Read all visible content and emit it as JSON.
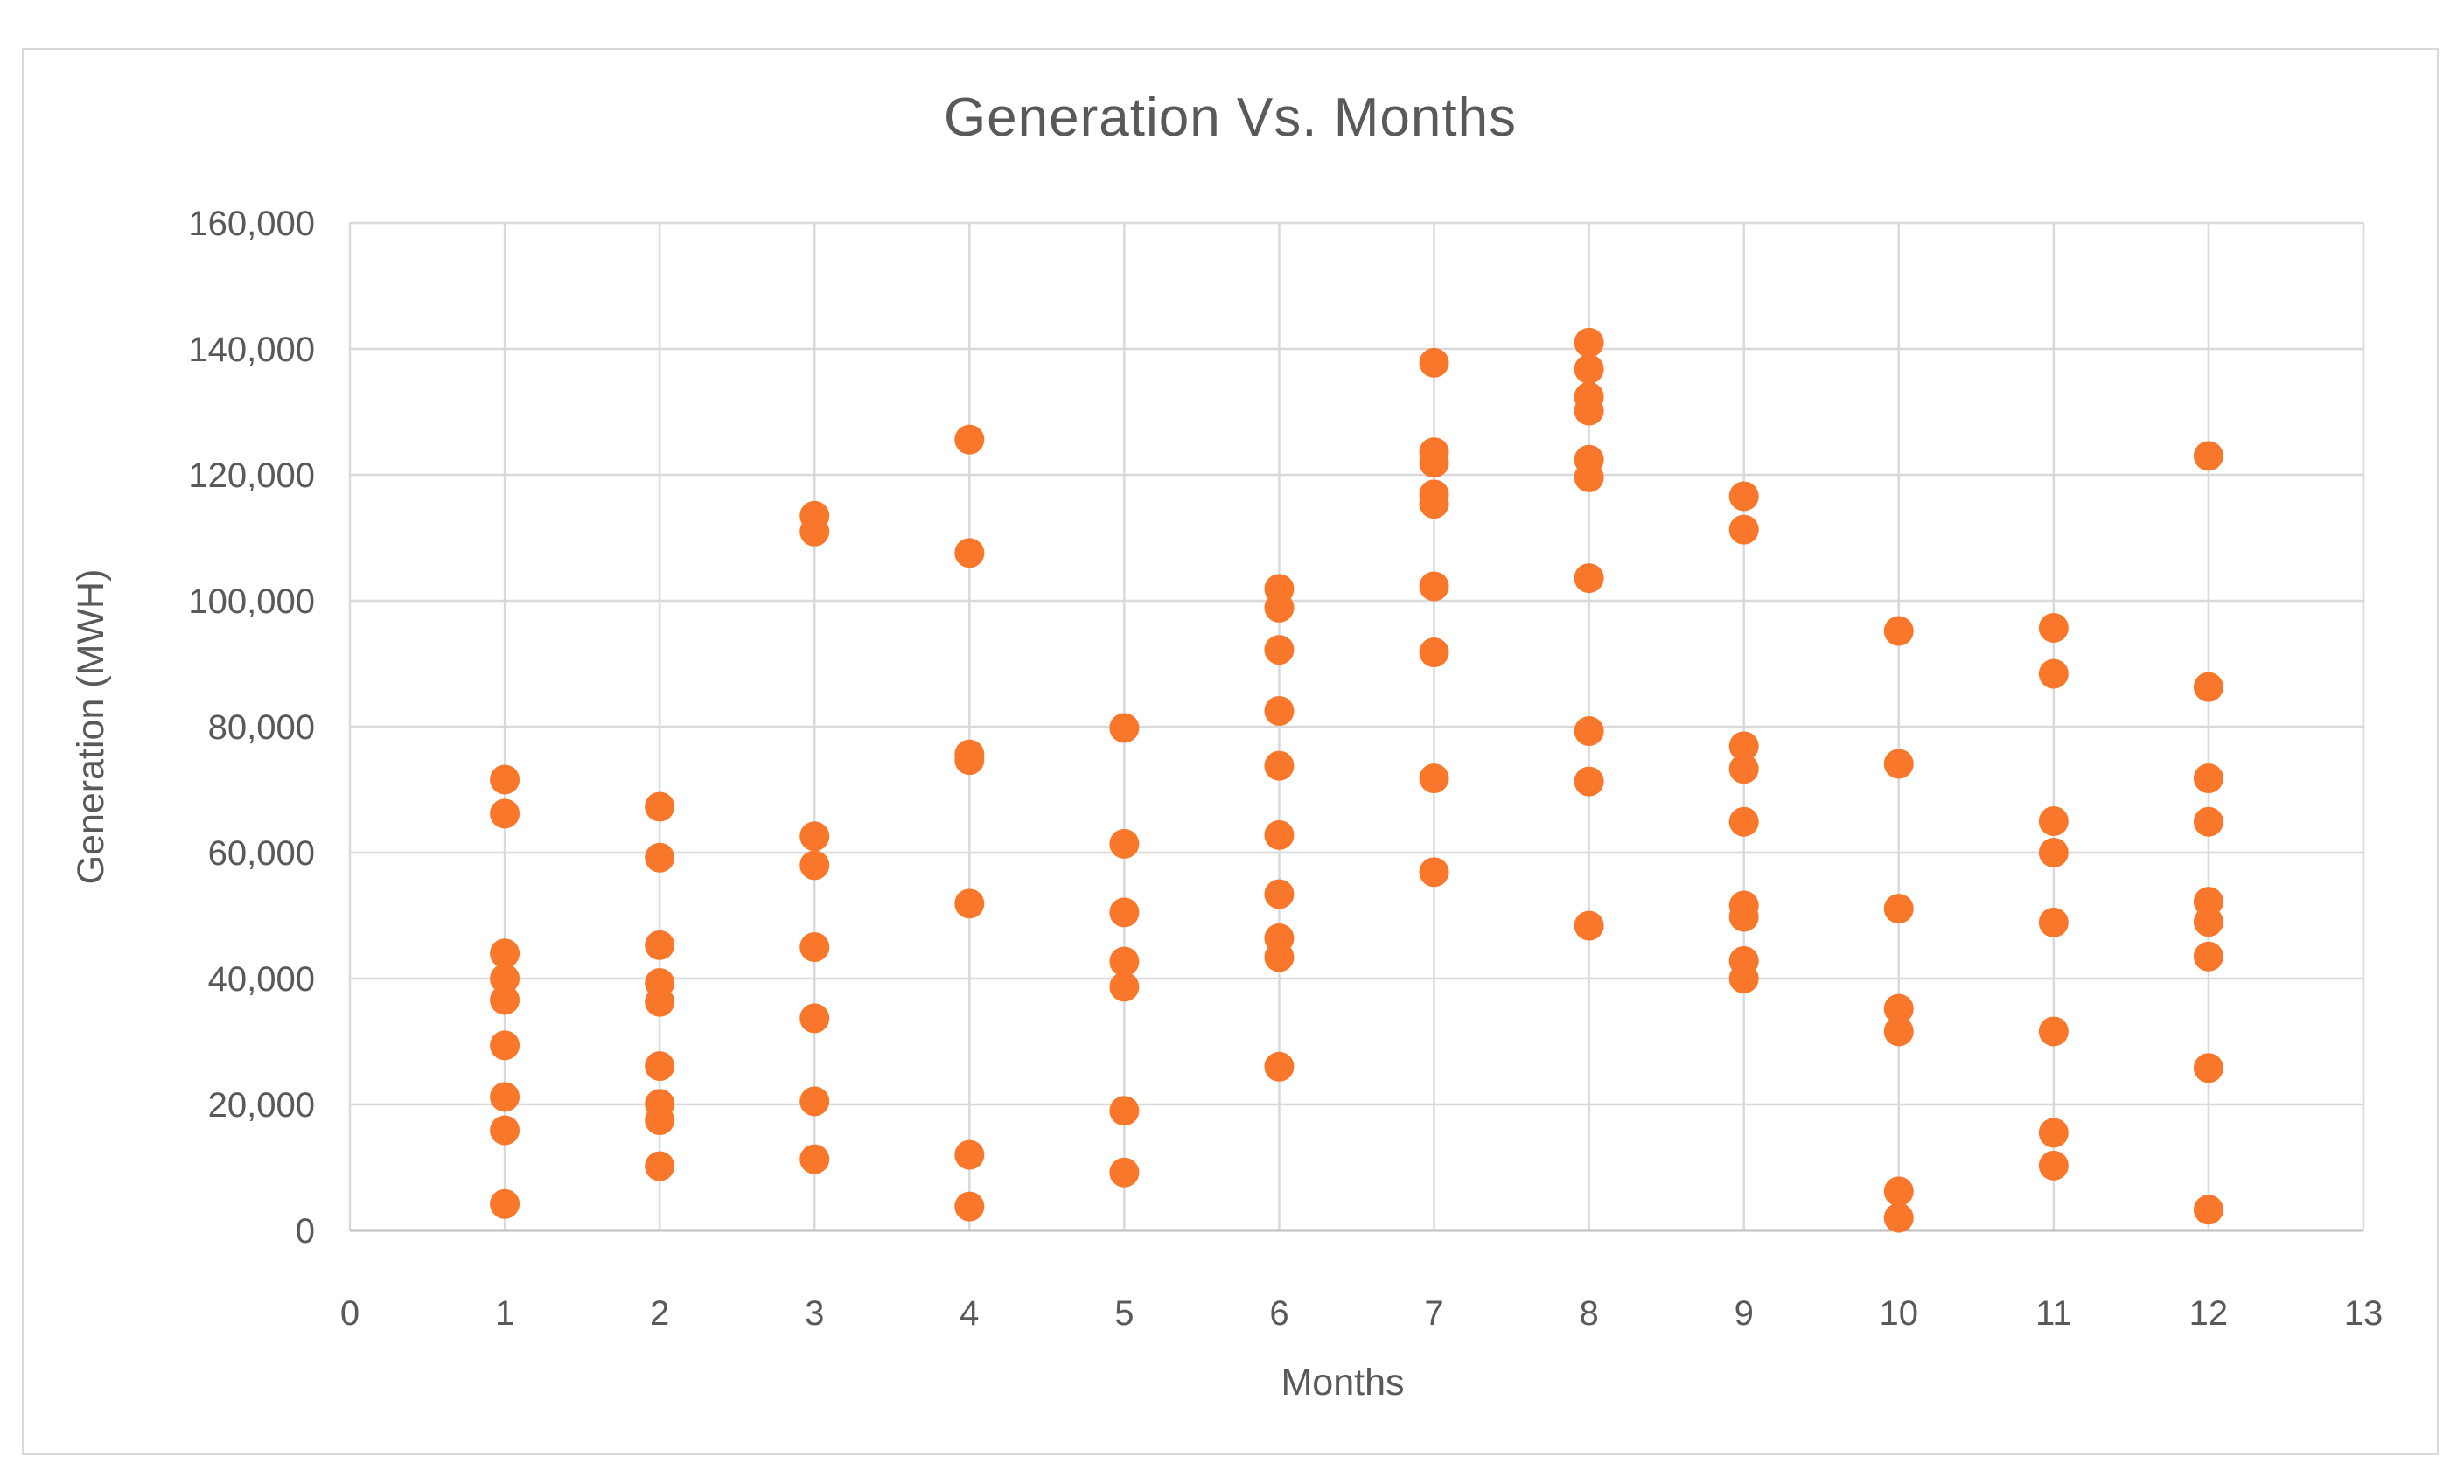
{
  "frame": {
    "background": "#ffffff",
    "border_color": "#d9d9d9"
  },
  "chart_data": {
    "type": "scatter",
    "title": "Generation Vs. Months",
    "xlabel": "Months",
    "ylabel": "Generation (MWH)",
    "xlim": [
      0,
      13
    ],
    "ylim": [
      0,
      160000
    ],
    "x_ticks": [
      0,
      1,
      2,
      3,
      4,
      5,
      6,
      7,
      8,
      9,
      10,
      11,
      12,
      13
    ],
    "y_ticks": [
      0,
      20000,
      40000,
      60000,
      80000,
      100000,
      120000,
      140000,
      160000
    ],
    "y_tick_labels": [
      "0",
      "20,000",
      "40,000",
      "60,000",
      "80,000",
      "100,000",
      "120,000",
      "140,000",
      "160,000"
    ],
    "grid": true,
    "legend": false,
    "text_color": "#595959",
    "grid_color": "#d9d9d9",
    "axis_color": "#bfbfbf",
    "marker": {
      "shape": "circle",
      "color": "#f9772b",
      "radius_px": 17
    },
    "series": [
      {
        "name": "Generation (MWH)",
        "points": [
          [
            1,
            71600
          ],
          [
            1,
            66200
          ],
          [
            1,
            44000
          ],
          [
            1,
            40000
          ],
          [
            1,
            36600
          ],
          [
            1,
            29400
          ],
          [
            1,
            21200
          ],
          [
            1,
            15900
          ],
          [
            1,
            4200
          ],
          [
            2,
            67300
          ],
          [
            2,
            59200
          ],
          [
            2,
            45300
          ],
          [
            2,
            39300
          ],
          [
            2,
            36300
          ],
          [
            2,
            26100
          ],
          [
            2,
            20100
          ],
          [
            2,
            17500
          ],
          [
            2,
            10200
          ],
          [
            3,
            113500
          ],
          [
            3,
            111000
          ],
          [
            3,
            62600
          ],
          [
            3,
            58000
          ],
          [
            3,
            45000
          ],
          [
            3,
            33700
          ],
          [
            3,
            20500
          ],
          [
            3,
            11300
          ],
          [
            4,
            125600
          ],
          [
            4,
            107600
          ],
          [
            4,
            75600
          ],
          [
            4,
            74700
          ],
          [
            4,
            51900
          ],
          [
            4,
            12000
          ],
          [
            4,
            3800
          ],
          [
            5,
            79800
          ],
          [
            5,
            61400
          ],
          [
            5,
            50500
          ],
          [
            5,
            42700
          ],
          [
            5,
            38700
          ],
          [
            5,
            19000
          ],
          [
            5,
            9200
          ],
          [
            6,
            101900
          ],
          [
            6,
            98900
          ],
          [
            6,
            92200
          ],
          [
            6,
            82500
          ],
          [
            6,
            73800
          ],
          [
            6,
            62800
          ],
          [
            6,
            53400
          ],
          [
            6,
            46400
          ],
          [
            6,
            43400
          ],
          [
            6,
            26000
          ],
          [
            7,
            137800
          ],
          [
            7,
            123600
          ],
          [
            7,
            121900
          ],
          [
            7,
            116900
          ],
          [
            7,
            115400
          ],
          [
            7,
            102300
          ],
          [
            7,
            91800
          ],
          [
            7,
            71800
          ],
          [
            7,
            56900
          ],
          [
            8,
            141000
          ],
          [
            8,
            136800
          ],
          [
            8,
            132400
          ],
          [
            8,
            130200
          ],
          [
            8,
            122400
          ],
          [
            8,
            119600
          ],
          [
            8,
            103600
          ],
          [
            8,
            79300
          ],
          [
            8,
            71300
          ],
          [
            8,
            48400
          ],
          [
            9,
            116600
          ],
          [
            9,
            111300
          ],
          [
            9,
            76900
          ],
          [
            9,
            73300
          ],
          [
            9,
            64900
          ],
          [
            9,
            51600
          ],
          [
            9,
            49800
          ],
          [
            9,
            42800
          ],
          [
            9,
            40000
          ],
          [
            10,
            95200
          ],
          [
            10,
            74100
          ],
          [
            10,
            51100
          ],
          [
            10,
            35200
          ],
          [
            10,
            31600
          ],
          [
            10,
            6200
          ],
          [
            10,
            2000
          ],
          [
            11,
            95700
          ],
          [
            11,
            88400
          ],
          [
            11,
            65000
          ],
          [
            11,
            60000
          ],
          [
            11,
            48900
          ],
          [
            11,
            31600
          ],
          [
            11,
            15500
          ],
          [
            11,
            10300
          ],
          [
            12,
            123000
          ],
          [
            12,
            86300
          ],
          [
            12,
            71800
          ],
          [
            12,
            64900
          ],
          [
            12,
            52200
          ],
          [
            12,
            49000
          ],
          [
            12,
            43500
          ],
          [
            12,
            25800
          ],
          [
            12,
            3300
          ]
        ]
      }
    ]
  }
}
